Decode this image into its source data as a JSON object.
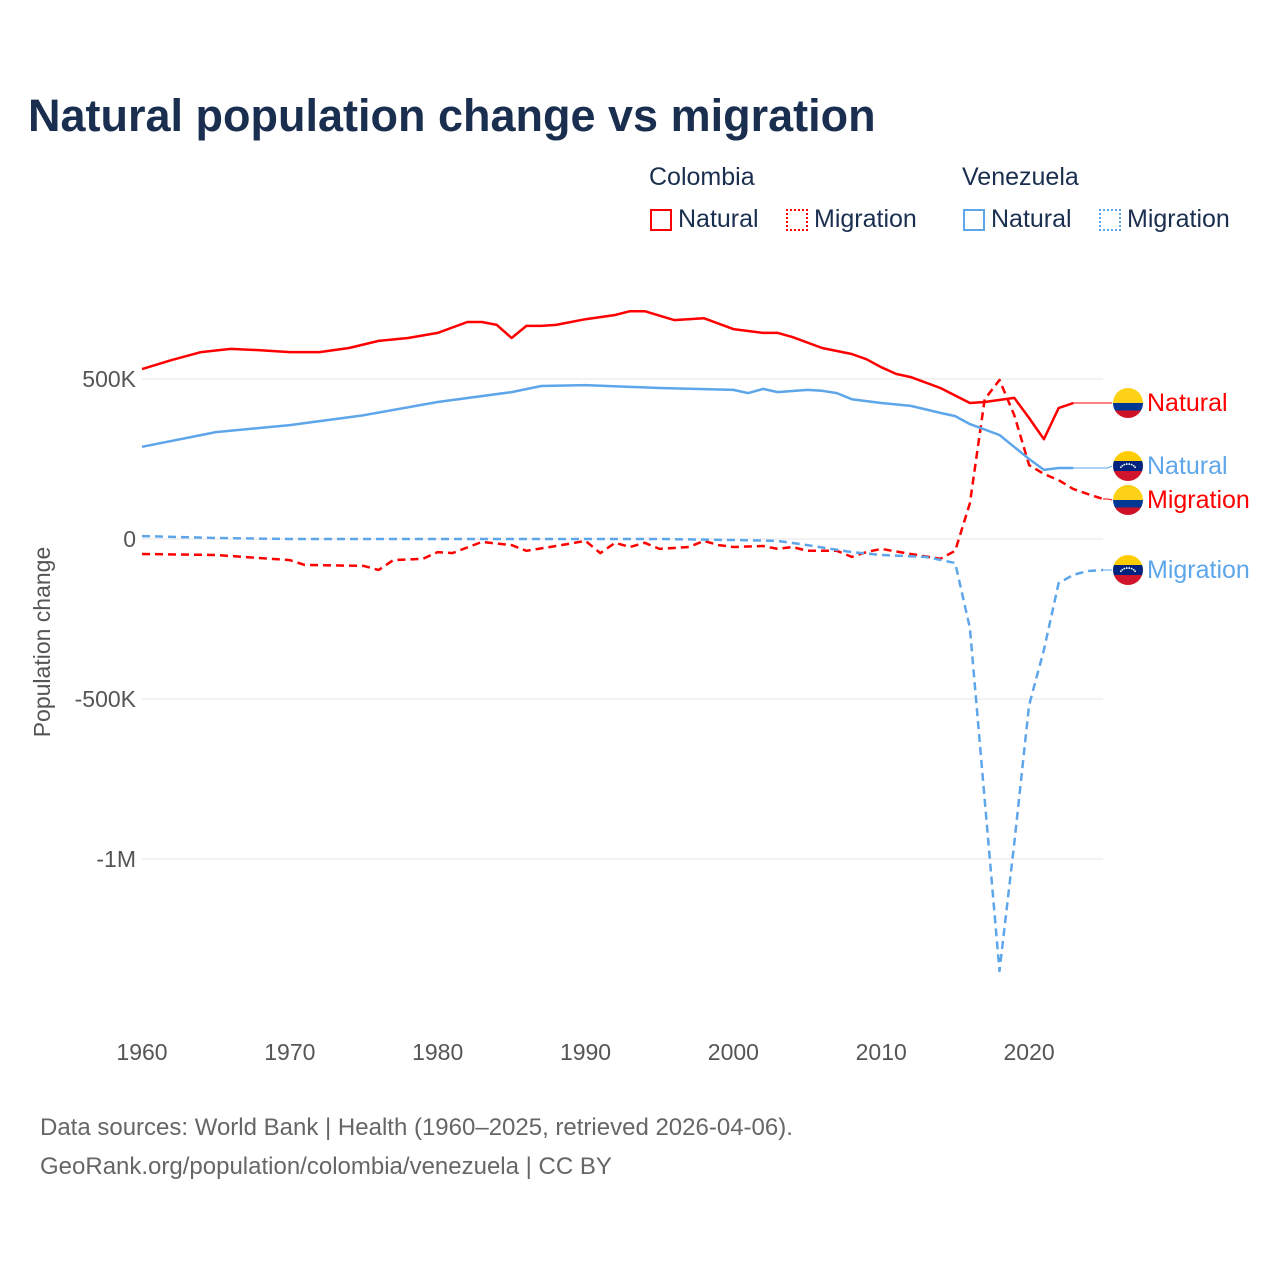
{
  "title": "Natural population change vs migration",
  "legend": {
    "groups": [
      {
        "name": "Colombia",
        "items": [
          "Natural",
          "Migration"
        ]
      },
      {
        "name": "Venezuela",
        "items": [
          "Natural",
          "Migration"
        ]
      }
    ]
  },
  "footer": {
    "line1": "Data sources: World Bank | Health (1960–2025, retrieved 2026-04-06).",
    "line2": "GeoRank.org/population/colombia/venezuela | CC BY"
  },
  "colors": {
    "colombia": "#ff0000",
    "venezuela": "#5ea6ea",
    "title": "#1a2e4f"
  },
  "chart_data": {
    "type": "line",
    "title": "Natural population change vs migration",
    "xlabel": "",
    "ylabel": "Population change",
    "xlim": [
      1960,
      2025
    ],
    "ylim": [
      -1450000,
      750000
    ],
    "xticks": [
      1960,
      1970,
      1980,
      1990,
      2000,
      2010,
      2020
    ],
    "xtick_labels": [
      "1960",
      "1970",
      "1980",
      "1990",
      "2000",
      "2010",
      "2020"
    ],
    "yticks": [
      500000,
      0,
      -500000,
      -1000000
    ],
    "ytick_labels": [
      "500K",
      "0",
      "-500K",
      "-1M"
    ],
    "grid": true,
    "series": [
      {
        "name": "Colombia Natural",
        "label": "Natural",
        "country": "colombia",
        "style": "solid",
        "x": [
          1960,
          1962,
          1964,
          1966,
          1968,
          1970,
          1972,
          1974,
          1976,
          1978,
          1980,
          1982,
          1983,
          1984,
          1985,
          1986,
          1987,
          1988,
          1990,
          1992,
          1993,
          1994,
          1996,
          1998,
          2000,
          2002,
          2003,
          2004,
          2006,
          2008,
          2009,
          2010,
          2011,
          2012,
          2014,
          2016,
          2017,
          2019,
          2020,
          2021,
          2022,
          2023
        ],
        "y": [
          531000,
          559000,
          584000,
          594000,
          590000,
          584000,
          584000,
          597000,
          619000,
          628000,
          644000,
          678000,
          678000,
          669000,
          628000,
          666000,
          666000,
          669000,
          687000,
          700000,
          712000,
          712000,
          684000,
          690000,
          656000,
          644000,
          644000,
          631000,
          597000,
          578000,
          562000,
          537000,
          516000,
          506000,
          472000,
          425000,
          428000,
          441000,
          378000,
          312000,
          409000,
          425000
        ]
      },
      {
        "name": "Colombia Migration",
        "label": "Migration",
        "country": "colombia",
        "style": "dashed",
        "x": [
          1960,
          1965,
          1970,
          1971,
          1975,
          1976,
          1977,
          1979,
          1980,
          1981,
          1983,
          1985,
          1986,
          1988,
          1990,
          1991,
          1992,
          1993,
          1994,
          1995,
          1997,
          1998,
          1999,
          2000,
          2002,
          2003,
          2004,
          2005,
          2007,
          2008,
          2009,
          2010,
          2012,
          2014,
          2015,
          2016,
          2017,
          2018,
          2019,
          2020,
          2021,
          2022,
          2023,
          2024,
          2025
        ],
        "y": [
          -47000,
          -50000,
          -66000,
          -81000,
          -84000,
          -97000,
          -66000,
          -62000,
          -41000,
          -44000,
          -9000,
          -19000,
          -37000,
          -22000,
          -6000,
          -44000,
          -12000,
          -25000,
          -12000,
          -31000,
          -25000,
          -6000,
          -19000,
          -25000,
          -22000,
          -31000,
          -25000,
          -37000,
          -37000,
          -56000,
          -41000,
          -31000,
          -47000,
          -62000,
          -37000,
          112000,
          437000,
          497000,
          387000,
          231000,
          203000,
          184000,
          156000,
          140000,
          125000
        ]
      },
      {
        "name": "Venezuela Natural",
        "label": "Natural",
        "country": "venezuela",
        "style": "solid",
        "x": [
          1960,
          1965,
          1970,
          1975,
          1980,
          1985,
          1987,
          1990,
          1995,
          2000,
          2001,
          2002,
          2003,
          2005,
          2006,
          2007,
          2008,
          2010,
          2012,
          2014,
          2015,
          2016,
          2018,
          2020,
          2021,
          2022,
          2023
        ],
        "y": [
          288000,
          334000,
          356000,
          387000,
          428000,
          459000,
          478000,
          481000,
          472000,
          466000,
          456000,
          469000,
          459000,
          466000,
          463000,
          456000,
          437000,
          425000,
          416000,
          394000,
          384000,
          359000,
          325000,
          250000,
          216000,
          222000,
          222000
        ]
      },
      {
        "name": "Venezuela Migration",
        "label": "Migration",
        "country": "venezuela",
        "style": "dashed",
        "x": [
          1960,
          1965,
          1970,
          1980,
          1990,
          1995,
          2000,
          2003,
          2005,
          2008,
          2010,
          2013,
          2015,
          2016,
          2017,
          2018,
          2019,
          2020,
          2021,
          2022,
          2023,
          2024,
          2025
        ],
        "y": [
          9000,
          3000,
          0,
          0,
          0,
          0,
          -3000,
          -6000,
          -19000,
          -41000,
          -50000,
          -56000,
          -75000,
          -278000,
          -815000,
          -1350000,
          -950000,
          -519000,
          -347000,
          -138000,
          -112000,
          -100000,
          -97000
        ]
      }
    ]
  }
}
